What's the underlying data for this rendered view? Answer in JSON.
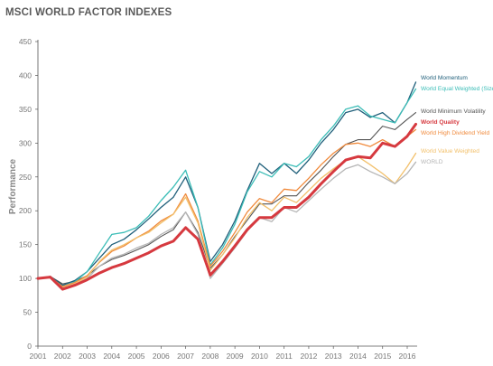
{
  "chart_data": {
    "type": "line",
    "title": "MSCI WORLD FACTOR INDEXES",
    "ylabel": "Performance",
    "xlabel": "",
    "ylim": [
      0,
      450
    ],
    "yticks": [
      0,
      50,
      100,
      150,
      200,
      250,
      300,
      350,
      400,
      450
    ],
    "xlim": [
      2001.0,
      2016.55
    ],
    "xticks": [
      2001,
      2002,
      2003,
      2004,
      2005,
      2006,
      2007,
      2008,
      2009,
      2010,
      2011,
      2012,
      2013,
      2014,
      2015,
      2016
    ],
    "xtick_labels": [
      "2001",
      "2002",
      "2003",
      "2004",
      "2005",
      "2006",
      "2007",
      "2008",
      "2009",
      "2010",
      "2011",
      "2012",
      "2013",
      "2014",
      "2015",
      "2016"
    ],
    "grid": false,
    "legend_position": "right",
    "x": [
      2001.0,
      2001.5,
      2002.0,
      2002.5,
      2003.0,
      2003.5,
      2004.0,
      2004.5,
      2005.0,
      2005.5,
      2006.0,
      2006.5,
      2007.0,
      2007.5,
      2008.0,
      2008.5,
      2009.0,
      2009.5,
      2010.0,
      2010.5,
      2011.0,
      2011.5,
      2012.0,
      2012.5,
      2013.0,
      2013.5,
      2014.0,
      2014.5,
      2015.0,
      2015.5,
      2016.0,
      2016.35
    ],
    "series": [
      {
        "name": "World Momentum",
        "color": "#1f5f7a",
        "width": 1.3,
        "values": [
          100,
          103,
          90,
          97,
          110,
          130,
          150,
          158,
          172,
          188,
          205,
          220,
          250,
          205,
          125,
          150,
          185,
          230,
          270,
          255,
          270,
          255,
          275,
          300,
          320,
          345,
          350,
          338,
          345,
          330,
          360,
          390
        ]
      },
      {
        "name": "World Equal Weighted (Size)",
        "color": "#3bbdb7",
        "width": 1.3,
        "values": [
          100,
          102,
          88,
          95,
          110,
          138,
          165,
          168,
          175,
          192,
          215,
          235,
          260,
          205,
          120,
          145,
          180,
          228,
          258,
          250,
          270,
          265,
          280,
          305,
          325,
          350,
          355,
          340,
          335,
          330,
          360,
          380
        ]
      },
      {
        "name": "World Minimum Volatility",
        "color": "#555555",
        "width": 1.1,
        "values": [
          100,
          103,
          92,
          96,
          104,
          118,
          128,
          134,
          142,
          150,
          162,
          172,
          198,
          168,
          115,
          135,
          162,
          186,
          210,
          210,
          222,
          222,
          242,
          260,
          280,
          298,
          305,
          305,
          325,
          320,
          335,
          345
        ]
      },
      {
        "name": "World Quality",
        "color": "#d6393f",
        "width": 3.0,
        "values": [
          100,
          102,
          84,
          90,
          98,
          108,
          116,
          122,
          130,
          138,
          148,
          155,
          175,
          158,
          105,
          125,
          148,
          172,
          190,
          190,
          205,
          205,
          220,
          240,
          258,
          275,
          280,
          278,
          300,
          295,
          310,
          328
        ]
      },
      {
        "name": "World High Dividend Yield",
        "color": "#f08a3c",
        "width": 1.3,
        "values": [
          100,
          102,
          88,
          94,
          104,
          124,
          140,
          148,
          160,
          170,
          185,
          195,
          225,
          185,
          118,
          140,
          168,
          198,
          218,
          212,
          232,
          230,
          248,
          268,
          285,
          298,
          300,
          295,
          305,
          295,
          310,
          320
        ]
      },
      {
        "name": "World Value Weighted",
        "color": "#f2c06b",
        "width": 1.3,
        "values": [
          100,
          101,
          86,
          92,
          102,
          125,
          142,
          150,
          160,
          168,
          182,
          195,
          220,
          182,
          112,
          135,
          160,
          190,
          212,
          200,
          220,
          212,
          230,
          248,
          262,
          275,
          280,
          268,
          255,
          240,
          265,
          285
        ]
      },
      {
        "name": "WORLD",
        "color": "#b5b5b5",
        "width": 1.3,
        "values": [
          100,
          101,
          85,
          90,
          100,
          118,
          130,
          136,
          145,
          152,
          165,
          175,
          198,
          165,
          100,
          122,
          145,
          170,
          190,
          184,
          205,
          198,
          215,
          232,
          248,
          262,
          268,
          258,
          250,
          240,
          255,
          272
        ]
      }
    ]
  }
}
